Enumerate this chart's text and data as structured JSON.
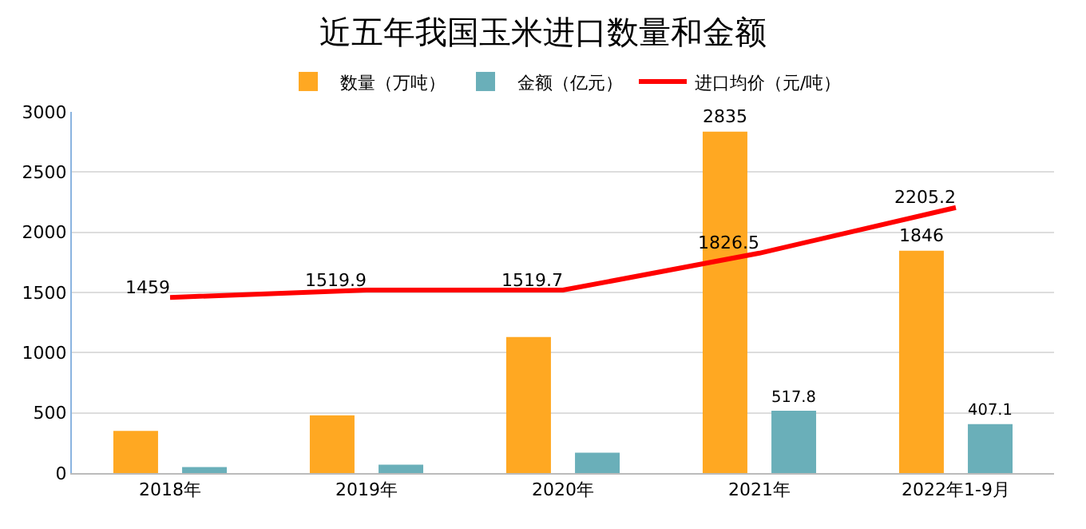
{
  "chart_data": {
    "type": "bar",
    "title": "近五年我国玉米进口数量和金额",
    "categories": [
      "2018年",
      "2019年",
      "2020年",
      "2021年",
      "2022年1-9月"
    ],
    "series": [
      {
        "name": "数量（万吨）",
        "color": "#ffa822",
        "values": [
          350,
          480,
          1130,
          2835,
          1846
        ],
        "value_labels": [
          null,
          null,
          null,
          "2835",
          "1846"
        ]
      },
      {
        "name": "金额（亿元）",
        "color": "#6aafb9",
        "values": [
          50,
          70,
          170,
          517.8,
          407.1
        ],
        "value_labels": [
          null,
          null,
          null,
          "517.8",
          "407.1"
        ]
      },
      {
        "name": "进口均价（元/吨）",
        "type": "line",
        "color": "#ff0000",
        "values": [
          1459,
          1519.9,
          1519.7,
          1826.5,
          2205.2
        ],
        "value_labels": [
          "1459",
          "1519.9",
          "1519.7",
          "1826.5",
          "2205.2"
        ]
      }
    ],
    "ylim": [
      0,
      3000
    ],
    "yticks": [
      0,
      500,
      1000,
      1500,
      2000,
      2500,
      3000
    ],
    "grid": "y",
    "legend": "top",
    "marker": "none"
  }
}
